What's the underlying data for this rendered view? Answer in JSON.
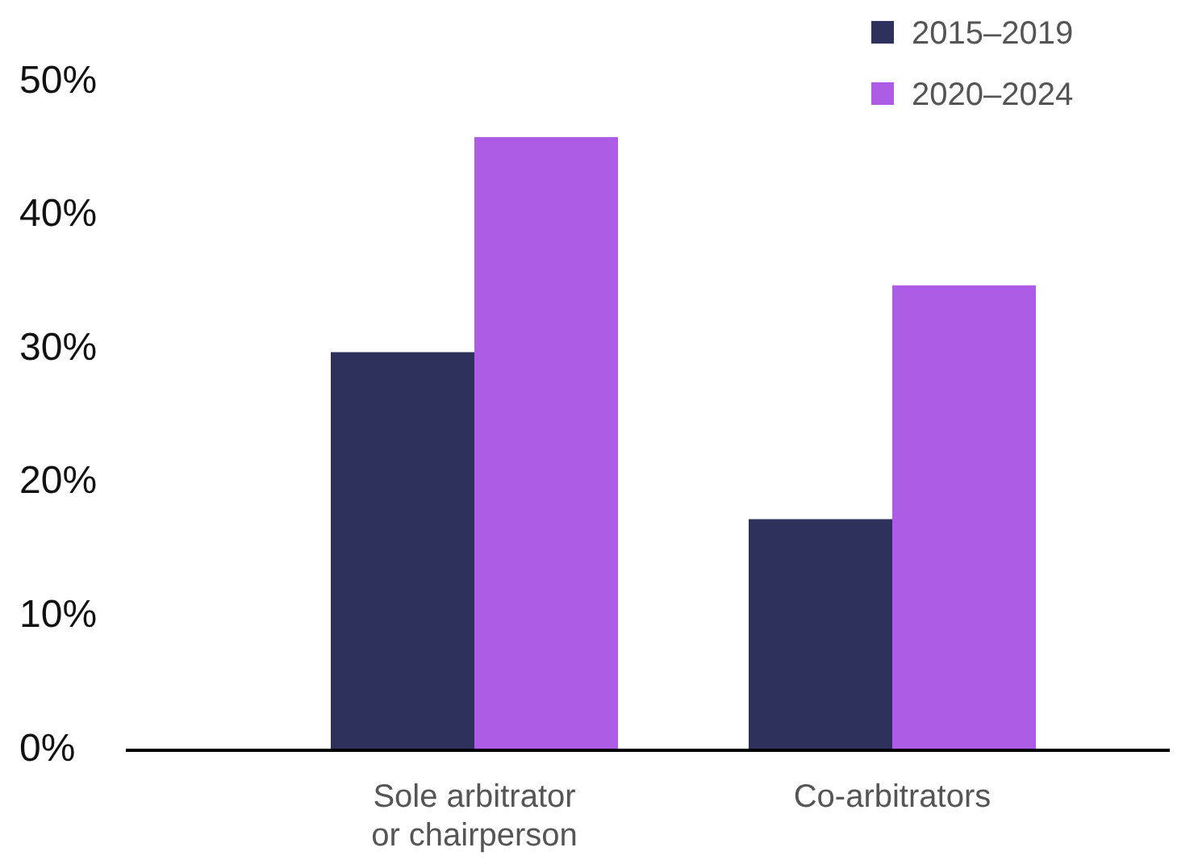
{
  "chart_data": {
    "type": "bar",
    "categories": [
      "Sole arbitrator or chairperson",
      "Co-arbitrators"
    ],
    "series": [
      {
        "name": "2015–2019",
        "color": "#2e315c",
        "values": [
          29.8,
          17.3
        ]
      },
      {
        "name": "2020–2024",
        "color": "#ad5ce6",
        "values": [
          45.9,
          34.8
        ]
      }
    ],
    "ylim": [
      0,
      50
    ],
    "yticks": [
      {
        "value": 0,
        "label": "0%"
      },
      {
        "value": 10,
        "label": "10%"
      },
      {
        "value": 20,
        "label": "20%"
      },
      {
        "value": 30,
        "label": "30%"
      },
      {
        "value": 40,
        "label": "40%"
      },
      {
        "value": 50,
        "label": "50%"
      }
    ],
    "grid": false,
    "legend": "top right"
  }
}
